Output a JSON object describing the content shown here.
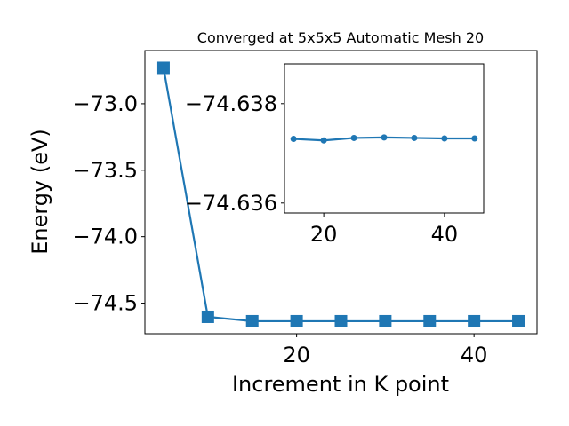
{
  "chart_data": [
    {
      "type": "line",
      "title": "Converged at 5x5x5 Automatic Mesh 20",
      "xlabel": "Increment in K point",
      "ylabel": "Energy (eV)",
      "x": [
        5,
        10,
        15,
        20,
        25,
        30,
        35,
        40,
        45
      ],
      "series": [
        {
          "values": [
            -72.73,
            -74.603,
            -74.6362,
            -74.6362,
            -74.6362,
            -74.6362,
            -74.6362,
            -74.6362,
            -74.6362
          ],
          "color": "#1f77b4",
          "marker": "square"
        }
      ],
      "xlim": [
        2.9,
        47.1
      ],
      "ylim": [
        -74.73,
        -72.6
      ],
      "xticks": [
        20,
        40
      ],
      "xtick_labels": [
        "20",
        "40"
      ],
      "yticks": [
        -73.0,
        -73.5,
        -74.0,
        -74.5
      ],
      "ytick_labels": [
        "−73.0",
        "−73.5",
        "−74.0",
        "−74.5"
      ],
      "grid": false,
      "legend": "none"
    },
    {
      "type": "line",
      "title": "",
      "xlabel": "",
      "ylabel": "",
      "x": [
        15,
        20,
        25,
        30,
        35,
        40,
        45
      ],
      "series": [
        {
          "values": [
            -74.63729,
            -74.63726,
            -74.63731,
            -74.63732,
            -74.63731,
            -74.6373,
            -74.6373
          ],
          "color": "#1f77b4",
          "marker": "circle"
        }
      ],
      "xlim": [
        13.5,
        46.5
      ],
      "ylim": [
        -74.6358,
        -74.6388
      ],
      "xticks": [
        20,
        40
      ],
      "xtick_labels": [
        "20",
        "40"
      ],
      "yticks": [
        -74.638,
        -74.636
      ],
      "ytick_labels": [
        "−74.638",
        "−74.636"
      ],
      "grid": false,
      "legend": "none"
    }
  ]
}
